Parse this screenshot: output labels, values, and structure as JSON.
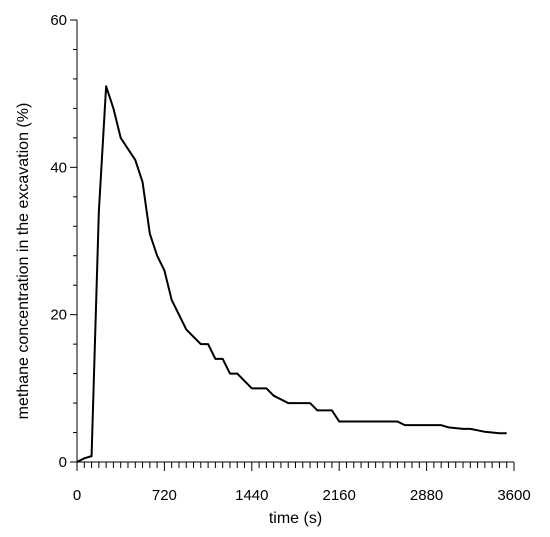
{
  "chart_data": {
    "type": "line",
    "xlabel": "time (s)",
    "ylabel": "methane concentration in the excavation (%)",
    "xlim": [
      0,
      3600
    ],
    "ylim": [
      0,
      60
    ],
    "x_ticks": [
      "0",
      "720",
      "1440",
      "2160",
      "2880",
      "3600"
    ],
    "y_ticks": [
      "0",
      "20",
      "40",
      "60"
    ],
    "x_minor_step": 60,
    "y_minor_step": 4,
    "grid": false,
    "series": [
      {
        "x": [
          0,
          60,
          120,
          180,
          240,
          300,
          360,
          420,
          480,
          540,
          600,
          660,
          720,
          780,
          840,
          900,
          960,
          1020,
          1080,
          1140,
          1200,
          1260,
          1320,
          1380,
          1440,
          1500,
          1560,
          1620,
          1680,
          1740,
          1800,
          1860,
          1920,
          1980,
          2040,
          2100,
          2160,
          2220,
          2280,
          2340,
          2400,
          2460,
          2520,
          2580,
          2640,
          2700,
          2760,
          2820,
          2880,
          2940,
          3000,
          3060,
          3120,
          3180,
          3240,
          3300,
          3360,
          3420,
          3480,
          3540
        ],
        "values": [
          0,
          0.5,
          0.8,
          34,
          51,
          48,
          44,
          42.5,
          41,
          38,
          31,
          28,
          26,
          22,
          20,
          18,
          17,
          16,
          16,
          14,
          14,
          12,
          12,
          11,
          10,
          10,
          10,
          9,
          8.5,
          8,
          8,
          8,
          8,
          7,
          7,
          7,
          5.5,
          5.5,
          5.5,
          5.5,
          5.5,
          5.5,
          5.5,
          5.5,
          5.5,
          5,
          5,
          5,
          5,
          5,
          5,
          4.7,
          4.6,
          4.5,
          4.5,
          4.3,
          4.1,
          4,
          3.9,
          3.9
        ]
      }
    ]
  }
}
